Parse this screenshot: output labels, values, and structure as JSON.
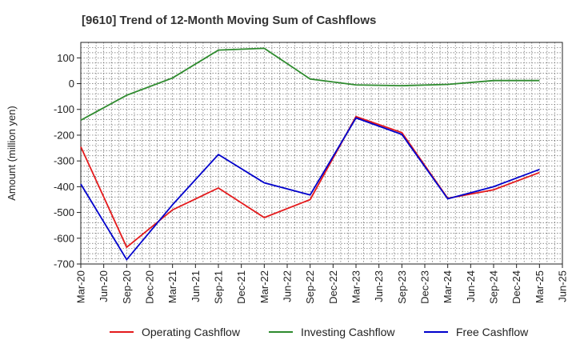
{
  "chart_data": {
    "type": "line",
    "title": "[9610]  Trend of 12-Month Moving Sum of Cashflows",
    "xlabel": "",
    "ylabel": "Amount (million yen)",
    "ylim": [
      -700,
      160
    ],
    "yticks": [
      100,
      0,
      -100,
      -200,
      -300,
      -400,
      -500,
      -600,
      -700
    ],
    "categories": [
      "Mar-20",
      "Jun-20",
      "Sep-20",
      "Dec-20",
      "Mar-21",
      "Jun-21",
      "Sep-21",
      "Dec-21",
      "Mar-22",
      "Jun-22",
      "Sep-22",
      "Dec-22",
      "Mar-23",
      "Jun-23",
      "Sep-23",
      "Dec-23",
      "Mar-24",
      "Jun-24",
      "Sep-24",
      "Dec-24",
      "Mar-25",
      "Jun-25"
    ],
    "grid": true,
    "legend_position": "bottom",
    "series": [
      {
        "name": "Operating Cashflow",
        "color": "#e41a1c",
        "points": [
          {
            "x": "Mar-20",
            "y": -245
          },
          {
            "x": "Sep-20",
            "y": -635
          },
          {
            "x": "Mar-21",
            "y": -490
          },
          {
            "x": "Sep-21",
            "y": -405
          },
          {
            "x": "Mar-22",
            "y": -520
          },
          {
            "x": "Sep-22",
            "y": -450
          },
          {
            "x": "Mar-23",
            "y": -128
          },
          {
            "x": "Sep-23",
            "y": -190
          },
          {
            "x": "Mar-24",
            "y": -445
          },
          {
            "x": "Sep-24",
            "y": -412
          },
          {
            "x": "Mar-25",
            "y": -345
          }
        ]
      },
      {
        "name": "Investing Cashflow",
        "color": "#2e8b2e",
        "points": [
          {
            "x": "Mar-20",
            "y": -142
          },
          {
            "x": "Sep-20",
            "y": -45
          },
          {
            "x": "Mar-21",
            "y": 22
          },
          {
            "x": "Sep-21",
            "y": 130
          },
          {
            "x": "Mar-22",
            "y": 137
          },
          {
            "x": "Sep-22",
            "y": 18
          },
          {
            "x": "Mar-23",
            "y": -5
          },
          {
            "x": "Sep-23",
            "y": -8
          },
          {
            "x": "Mar-24",
            "y": -3
          },
          {
            "x": "Sep-24",
            "y": 12
          },
          {
            "x": "Mar-25",
            "y": 12
          }
        ]
      },
      {
        "name": "Free Cashflow",
        "color": "#0000cc",
        "points": [
          {
            "x": "Mar-20",
            "y": -390
          },
          {
            "x": "Sep-20",
            "y": -683
          },
          {
            "x": "Mar-21",
            "y": -470
          },
          {
            "x": "Sep-21",
            "y": -275
          },
          {
            "x": "Mar-22",
            "y": -385
          },
          {
            "x": "Sep-22",
            "y": -432
          },
          {
            "x": "Mar-23",
            "y": -133
          },
          {
            "x": "Sep-23",
            "y": -197
          },
          {
            "x": "Mar-24",
            "y": -447
          },
          {
            "x": "Sep-24",
            "y": -400
          },
          {
            "x": "Mar-25",
            "y": -333
          }
        ]
      }
    ]
  }
}
